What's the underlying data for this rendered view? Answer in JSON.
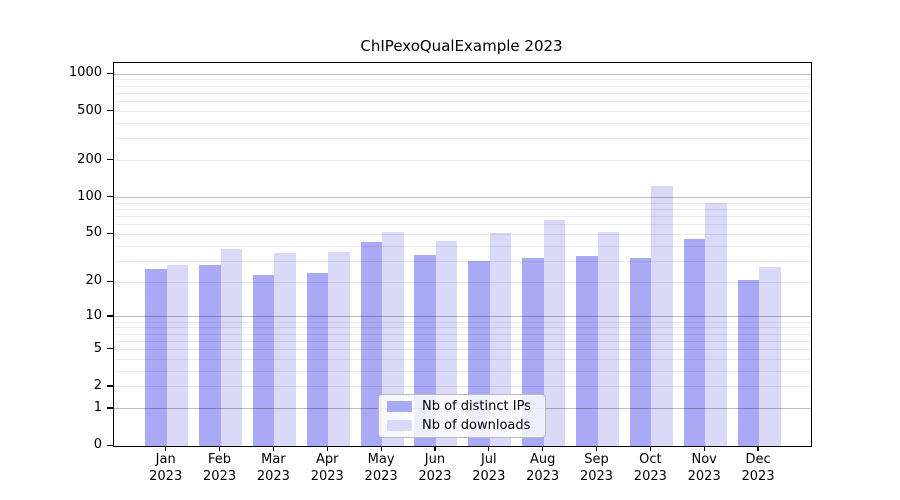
{
  "chart_data": {
    "type": "bar",
    "title": "ChIPexoQualExample 2023",
    "categories": [
      "Jan",
      "Feb",
      "Mar",
      "Apr",
      "May",
      "Jun",
      "Jul",
      "Aug",
      "Sep",
      "Oct",
      "Nov",
      "Dec"
    ],
    "x_year_label": "2023",
    "series": [
      {
        "name": "Nb of distinct IPs",
        "color": "#a9a9f6",
        "values": [
          26,
          28,
          23,
          24,
          43,
          34,
          30,
          32,
          33,
          32,
          46,
          21
        ]
      },
      {
        "name": "Nb of downloads",
        "color": "#dadaf8",
        "values": [
          28,
          38,
          35,
          36,
          52,
          44,
          51,
          66,
          52,
          125,
          90,
          27
        ]
      }
    ],
    "yscale": "log1p",
    "ylim": [
      0,
      1233
    ],
    "ylim_top": 1233,
    "y_ticks": [
      0,
      1,
      2,
      5,
      10,
      20,
      50,
      100,
      200,
      500,
      1000
    ],
    "y_major_gridlines": [
      1,
      10,
      100,
      1000
    ],
    "y_minor_gridlines": [
      2,
      3,
      4,
      5,
      6,
      7,
      8,
      9,
      20,
      30,
      40,
      50,
      60,
      70,
      80,
      90,
      200,
      300,
      400,
      500,
      600,
      700,
      800,
      900
    ],
    "grid": true,
    "legend_position": "lower center",
    "colors": {
      "grid_major": "#bdbdbd",
      "grid_minor": "#eaeaea",
      "axis": "#000000",
      "background": "#ffffff"
    }
  }
}
